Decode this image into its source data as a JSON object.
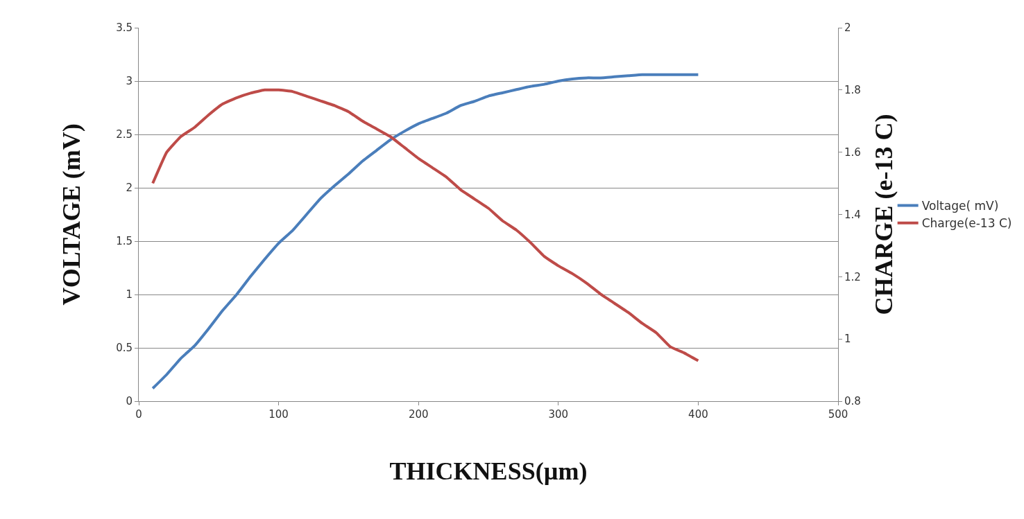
{
  "chart_data": {
    "type": "line",
    "xlabel": "THICKNESS(µm)",
    "ylabel": "VOLTAGE (mV)",
    "y2label": "CHARGE (e-13 C)",
    "x": [
      10,
      20,
      30,
      40,
      50,
      60,
      70,
      80,
      90,
      100,
      110,
      120,
      130,
      140,
      150,
      160,
      170,
      180,
      190,
      200,
      210,
      220,
      230,
      240,
      250,
      260,
      270,
      280,
      290,
      300,
      310,
      320,
      330,
      340,
      350,
      360,
      370,
      380,
      390,
      400
    ],
    "series": [
      {
        "name": "Voltage( mV)",
        "color": "#4a7ebb",
        "values": [
          0.12,
          0.25,
          0.4,
          0.52,
          0.68,
          0.85,
          1.0,
          1.17,
          1.33,
          1.48,
          1.6,
          1.75,
          1.9,
          2.02,
          2.13,
          2.25,
          2.35,
          2.45,
          2.53,
          2.6,
          2.65,
          2.7,
          2.77,
          2.81,
          2.86,
          2.89,
          2.92,
          2.95,
          2.97,
          3.0,
          3.02,
          3.03,
          3.03,
          3.04,
          3.05,
          3.06,
          3.06,
          3.06,
          3.06,
          3.06
        ]
      },
      {
        "name": "Charge(e-13 C)",
        "color": "#be4b48",
        "axis": "y2",
        "values": [
          1.5,
          1.6,
          1.65,
          1.68,
          1.72,
          1.755,
          1.775,
          1.79,
          1.8,
          1.8,
          1.795,
          1.78,
          1.765,
          1.75,
          1.73,
          1.7,
          1.675,
          1.65,
          1.615,
          1.58,
          1.55,
          1.52,
          1.48,
          1.45,
          1.42,
          1.38,
          1.35,
          1.31,
          1.265,
          1.235,
          1.21,
          1.18,
          1.145,
          1.115,
          1.085,
          1.05,
          1.02,
          0.975,
          0.955,
          0.93
        ]
      }
    ],
    "xlim": [
      0,
      500
    ],
    "xticks": [
      0,
      100,
      200,
      300,
      400,
      500
    ],
    "ylim": [
      0,
      3.5
    ],
    "yticks": [
      0,
      0.5,
      1,
      1.5,
      2,
      2.5,
      3,
      3.5
    ],
    "y2lim": [
      0.8,
      2
    ],
    "y2ticks": [
      0.8,
      1,
      1.2,
      1.4,
      1.6,
      1.8,
      2
    ],
    "grid": "y",
    "legend": "right",
    "marker": "none",
    "line_style": "solid"
  }
}
